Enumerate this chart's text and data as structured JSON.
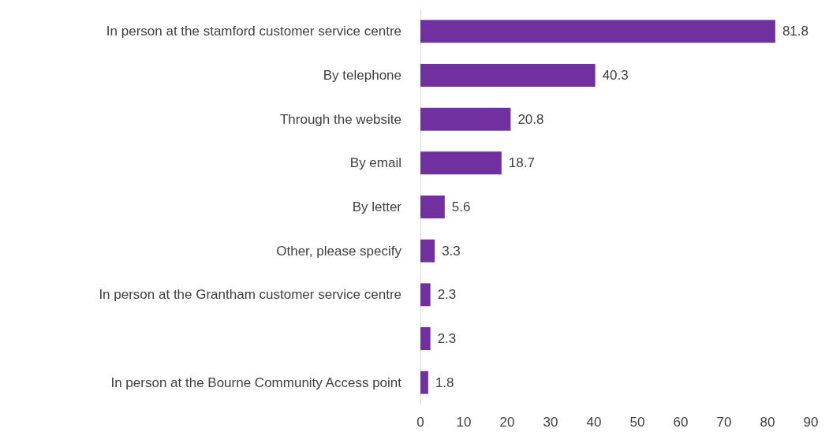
{
  "chart_data": {
    "type": "bar",
    "orientation": "horizontal",
    "categories": [
      "In person at the stamford customer service centre",
      "By telephone",
      "Through the website",
      "By email",
      "By letter",
      "Other, please specify",
      "In person at the Grantham customer service centre",
      null,
      "In person at the Bourne Community Access point"
    ],
    "values": [
      81.8,
      40.3,
      20.8,
      18.7,
      5.6,
      3.3,
      2.3,
      2.3,
      1.8
    ],
    "color": "#7030a0",
    "xlim": [
      0,
      90
    ],
    "xticks": [
      0,
      10,
      20,
      30,
      40,
      50,
      60,
      70,
      80,
      90
    ],
    "data_labels": true,
    "grid": false
  }
}
